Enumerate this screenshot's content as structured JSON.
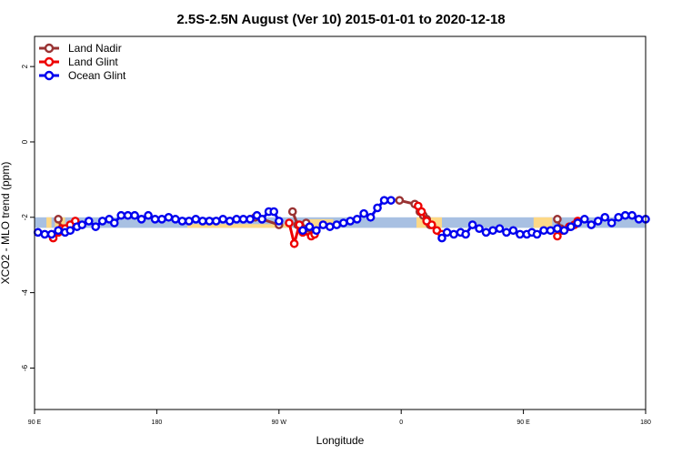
{
  "chart_data": {
    "type": "line",
    "title": "2.5S-2.5N August (Ver 10)   2015-01-01 to 2020-12-18",
    "xlabel": "Longitude",
    "ylabel": "XCO2 - MLO trend (ppm)",
    "xlim": [
      90,
      450
    ],
    "ylim": [
      -7.1,
      2.8
    ],
    "xticks": [
      {
        "value": 90,
        "label": "90 E"
      },
      {
        "value": 162,
        "label": "180"
      },
      {
        "value": 234,
        "label": "90 W"
      },
      {
        "value": 306,
        "label": "0"
      },
      {
        "value": 378,
        "label": "90 E"
      },
      {
        "value": 450,
        "label": "180"
      }
    ],
    "yticks": [
      {
        "value": 2,
        "label": "2"
      },
      {
        "value": 0,
        "label": "0"
      },
      {
        "value": -2,
        "label": "-2"
      },
      {
        "value": -4,
        "label": "-4"
      },
      {
        "value": -6,
        "label": "-6"
      }
    ],
    "legend_position": "top-left",
    "bands": [
      {
        "name": "blue",
        "color": "#a8c0e2",
        "y_low": -2.28,
        "y_high": -2.0,
        "x_start": 90,
        "x_end": 450
      },
      {
        "name": "yellow",
        "color": "#fdd886",
        "segments": [
          [
            97,
            100,
            -2.28,
            -2.0
          ],
          [
            102,
            108,
            -2.28,
            -2.0
          ],
          [
            180,
            240,
            -2.28,
            -2.18
          ],
          [
            252,
            266,
            -2.28,
            -2.05
          ],
          [
            315,
            330,
            -2.28,
            -2.0
          ],
          [
            384,
            390,
            -2.28,
            -2.0
          ],
          [
            390,
            395,
            -2.28,
            -2.0
          ]
        ]
      }
    ],
    "series": [
      {
        "name": "Land Nadir",
        "color": "#993333",
        "segments": [
          [
            [
              220,
              -2.0
            ],
            [
              224,
              -2.05
            ],
            [
              234,
              -2.2
            ]
          ],
          [
            [
              242,
              -1.85
            ],
            [
              245,
              -2.2
            ],
            [
              248,
              -2.3
            ],
            [
              250,
              -2.15
            ],
            [
              252,
              -2.3
            ]
          ],
          [
            [
              104,
              -2.05
            ],
            [
              106,
              -2.3
            ]
          ],
          [
            [
              305,
              -1.55
            ],
            [
              314,
              -1.65
            ],
            [
              317,
              -1.85
            ],
            [
              319,
              -1.95
            ],
            [
              321,
              -2.05
            ],
            [
              323,
              -2.2
            ]
          ],
          [
            [
              398,
              -2.05
            ],
            [
              400,
              -2.3
            ]
          ]
        ]
      },
      {
        "name": "Land Glint",
        "color": "#ee0000",
        "segments": [
          [
            [
              101,
              -2.55
            ],
            [
              104,
              -2.4
            ],
            [
              106,
              -2.3
            ],
            [
              108,
              -2.3
            ],
            [
              111,
              -2.2
            ],
            [
              114,
              -2.1
            ]
          ],
          [
            [
              240,
              -2.15
            ],
            [
              243,
              -2.7
            ],
            [
              246,
              -2.2
            ],
            [
              248,
              -2.4
            ],
            [
              253,
              -2.5
            ],
            [
              255,
              -2.45
            ]
          ],
          [
            [
              316,
              -1.7
            ],
            [
              318,
              -1.85
            ],
            [
              321,
              -2.1
            ],
            [
              324,
              -2.2
            ],
            [
              327,
              -2.35
            ],
            [
              330,
              -2.45
            ]
          ],
          [
            [
              398,
              -2.5
            ],
            [
              401,
              -2.35
            ],
            [
              405,
              -2.25
            ],
            [
              408,
              -2.2
            ],
            [
              410,
              -2.1
            ]
          ]
        ]
      },
      {
        "name": "Ocean Glint",
        "color": "#0000ee",
        "segments": [
          [
            [
              92,
              -2.4
            ],
            [
              96,
              -2.45
            ],
            [
              100,
              -2.45
            ],
            [
              104,
              -2.35
            ],
            [
              108,
              -2.4
            ],
            [
              111,
              -2.35
            ],
            [
              115,
              -2.25
            ],
            [
              118,
              -2.2
            ],
            [
              122,
              -2.1
            ],
            [
              126,
              -2.25
            ],
            [
              130,
              -2.1
            ],
            [
              134,
              -2.05
            ],
            [
              137,
              -2.15
            ],
            [
              141,
              -1.95
            ],
            [
              145,
              -1.95
            ],
            [
              149,
              -1.95
            ],
            [
              153,
              -2.05
            ],
            [
              157,
              -1.95
            ],
            [
              161,
              -2.05
            ],
            [
              165,
              -2.05
            ],
            [
              169,
              -2.0
            ],
            [
              173,
              -2.05
            ],
            [
              177,
              -2.1
            ],
            [
              181,
              -2.1
            ],
            [
              185,
              -2.05
            ],
            [
              189,
              -2.1
            ],
            [
              193,
              -2.1
            ],
            [
              197,
              -2.1
            ],
            [
              201,
              -2.05
            ],
            [
              205,
              -2.1
            ],
            [
              209,
              -2.05
            ],
            [
              213,
              -2.05
            ],
            [
              217,
              -2.05
            ],
            [
              221,
              -1.95
            ],
            [
              224,
              -2.05
            ],
            [
              228,
              -1.85
            ],
            [
              231,
              -1.85
            ],
            [
              234,
              -2.1
            ]
          ],
          [
            [
              248,
              -2.35
            ],
            [
              252,
              -2.25
            ],
            [
              256,
              -2.35
            ],
            [
              260,
              -2.2
            ],
            [
              264,
              -2.25
            ],
            [
              268,
              -2.2
            ],
            [
              272,
              -2.15
            ],
            [
              276,
              -2.1
            ],
            [
              280,
              -2.05
            ],
            [
              284,
              -1.9
            ],
            [
              288,
              -2.0
            ],
            [
              292,
              -1.75
            ],
            [
              296,
              -1.55
            ],
            [
              300,
              -1.55
            ]
          ],
          [
            [
              330,
              -2.55
            ],
            [
              333,
              -2.4
            ],
            [
              337,
              -2.45
            ],
            [
              341,
              -2.4
            ],
            [
              344,
              -2.45
            ],
            [
              348,
              -2.2
            ],
            [
              352,
              -2.3
            ],
            [
              356,
              -2.4
            ],
            [
              360,
              -2.35
            ],
            [
              364,
              -2.3
            ],
            [
              368,
              -2.4
            ],
            [
              372,
              -2.35
            ],
            [
              376,
              -2.45
            ],
            [
              380,
              -2.45
            ],
            [
              383,
              -2.4
            ],
            [
              386,
              -2.45
            ],
            [
              390,
              -2.35
            ],
            [
              394,
              -2.35
            ],
            [
              398,
              -2.3
            ],
            [
              402,
              -2.35
            ],
            [
              406,
              -2.25
            ],
            [
              410,
              -2.15
            ],
            [
              414,
              -2.05
            ],
            [
              418,
              -2.2
            ],
            [
              422,
              -2.1
            ],
            [
              426,
              -2.0
            ],
            [
              430,
              -2.15
            ],
            [
              434,
              -2.0
            ],
            [
              438,
              -1.95
            ],
            [
              442,
              -1.95
            ],
            [
              446,
              -2.05
            ],
            [
              450,
              -2.05
            ]
          ]
        ]
      }
    ]
  }
}
